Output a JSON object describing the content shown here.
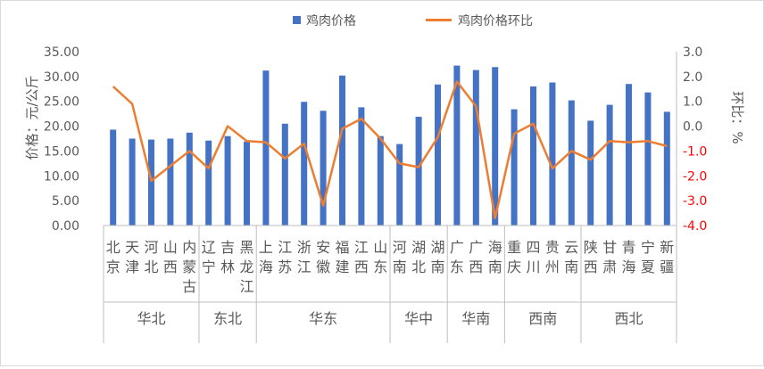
{
  "chart_data": {
    "type": "bar+line",
    "title": "",
    "ylabel_left": "价格：元/公斤",
    "ylabel_right": "环比：%",
    "ylim_left": [
      0,
      35
    ],
    "yticks_left": [
      "0.00",
      "5.00",
      "10.00",
      "15.00",
      "20.00",
      "25.00",
      "30.00",
      "35.00"
    ],
    "ylim_right": [
      -4,
      3
    ],
    "yticks_right": [
      "-4.0",
      "-3.0",
      "-2.0",
      "-1.0",
      "0.0",
      "1.0",
      "2.0",
      "3.0"
    ],
    "legend_position": "top",
    "colors": {
      "bar": "#4472c4",
      "line": "#ed7d31",
      "right_axis_negative": "#ff0000"
    },
    "categories": [
      "北京",
      "天津",
      "河北",
      "山西",
      "内蒙古",
      "辽宁",
      "吉林",
      "黑龙江",
      "上海",
      "江苏",
      "浙江",
      "安徽",
      "福建",
      "江西",
      "山东",
      "河南",
      "湖北",
      "湖南",
      "广东",
      "广西",
      "海南",
      "重庆",
      "四川",
      "贵州",
      "云南",
      "陕西",
      "甘肃",
      "青海",
      "宁夏",
      "新疆"
    ],
    "regions": [
      {
        "name": "华北",
        "count": 5
      },
      {
        "name": "东北",
        "count": 3
      },
      {
        "name": "华东",
        "count": 7
      },
      {
        "name": "华中",
        "count": 3
      },
      {
        "name": "华南",
        "count": 3
      },
      {
        "name": "西南",
        "count": 4
      },
      {
        "name": "西北",
        "count": 5
      }
    ],
    "series": [
      {
        "name": "鸡肉价格",
        "type": "bar",
        "axis": "left",
        "values": [
          19.3,
          17.5,
          17.3,
          17.5,
          18.7,
          17.1,
          18.0,
          16.9,
          31.2,
          20.5,
          24.9,
          23.1,
          30.2,
          23.8,
          18.0,
          16.4,
          21.9,
          28.4,
          32.2,
          31.3,
          31.9,
          23.4,
          28.0,
          28.8,
          25.2,
          21.1,
          24.3,
          28.5,
          26.8,
          22.9
        ]
      },
      {
        "name": "鸡肉价格环比",
        "type": "line",
        "axis": "right",
        "values": [
          1.6,
          0.9,
          -2.2,
          -1.6,
          -1.0,
          -1.7,
          0.0,
          -0.6,
          -0.65,
          -1.3,
          -0.7,
          -3.2,
          -0.1,
          0.3,
          -0.5,
          -1.5,
          -1.65,
          -0.45,
          1.8,
          0.8,
          -3.7,
          -0.3,
          0.1,
          -1.7,
          -1.0,
          -1.35,
          -0.6,
          -0.65,
          -0.6,
          -0.8
        ]
      }
    ]
  }
}
